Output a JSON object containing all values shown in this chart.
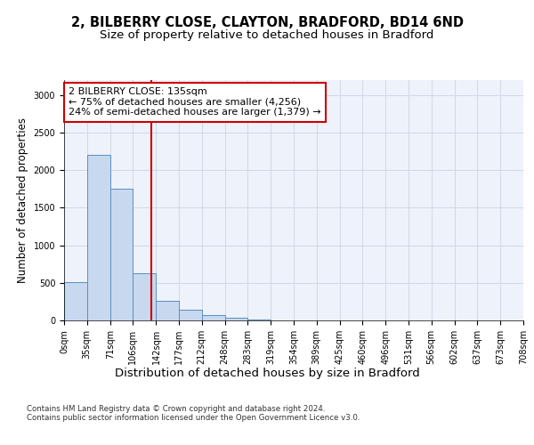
{
  "title_line1": "2, BILBERRY CLOSE, CLAYTON, BRADFORD, BD14 6ND",
  "title_line2": "Size of property relative to detached houses in Bradford",
  "xlabel": "Distribution of detached houses by size in Bradford",
  "ylabel": "Number of detached properties",
  "bar_bins": [
    0,
    35,
    71,
    106,
    142,
    177,
    212,
    248,
    283,
    319,
    354,
    389,
    425,
    460,
    496,
    531,
    566,
    602,
    637,
    673,
    708
  ],
  "bar_heights": [
    510,
    2200,
    1750,
    625,
    265,
    140,
    75,
    30,
    15,
    5,
    2,
    1,
    0,
    0,
    0,
    0,
    0,
    0,
    0,
    0
  ],
  "bar_color": "#c8d8ef",
  "bar_edge_color": "#5a8fc0",
  "bar_alpha": 1.0,
  "vline_x": 135,
  "vline_color": "#cc0000",
  "annotation_text": "2 BILBERRY CLOSE: 135sqm\n← 75% of detached houses are smaller (4,256)\n24% of semi-detached houses are larger (1,379) →",
  "annotation_box_color": "#cc0000",
  "ylim": [
    0,
    3200
  ],
  "yticks": [
    0,
    500,
    1000,
    1500,
    2000,
    2500,
    3000
  ],
  "xtick_labels": [
    "0sqm",
    "35sqm",
    "71sqm",
    "106sqm",
    "142sqm",
    "177sqm",
    "212sqm",
    "248sqm",
    "283sqm",
    "319sqm",
    "354sqm",
    "389sqm",
    "425sqm",
    "460sqm",
    "496sqm",
    "531sqm",
    "566sqm",
    "602sqm",
    "637sqm",
    "673sqm",
    "708sqm"
  ],
  "grid_color": "#d0d8e8",
  "bg_color": "#eef2fa",
  "footer_text": "Contains HM Land Registry data © Crown copyright and database right 2024.\nContains public sector information licensed under the Open Government Licence v3.0.",
  "title_fontsize": 10.5,
  "subtitle_fontsize": 9.5,
  "tick_fontsize": 7,
  "ylabel_fontsize": 8.5,
  "xlabel_fontsize": 9.5
}
